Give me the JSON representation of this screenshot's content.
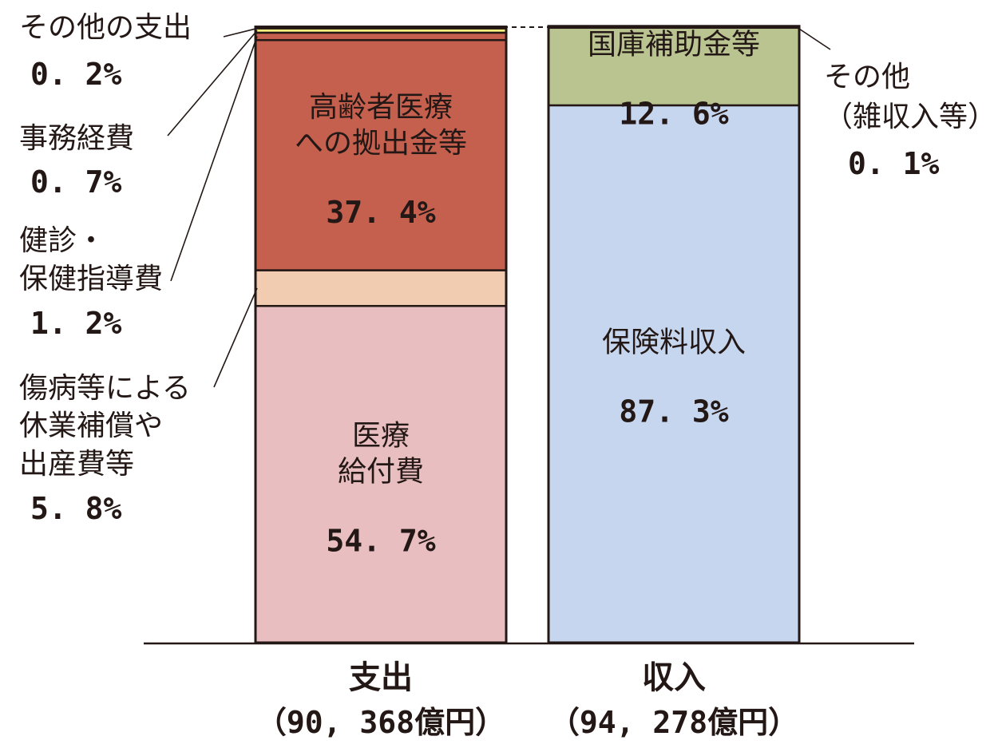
{
  "chart_data": {
    "type": "bar",
    "stacked": true,
    "normalized_percent": true,
    "categories": [
      {
        "name": "支出",
        "total": "（90, 368億円）"
      },
      {
        "name": "収入",
        "total": "（94, 278億円）"
      }
    ],
    "expenditure": [
      {
        "label_lines": [
          "医療",
          "給付費"
        ],
        "value": 54.7,
        "value_text": "54. 7%",
        "color": "#e9bec0",
        "label_position": "inside"
      },
      {
        "label_lines": [
          "傷病等による",
          "休業補償や",
          "出産費等"
        ],
        "value": 5.8,
        "value_text": "5. 8%",
        "color": "#f1ccb0",
        "label_position": "outside-left"
      },
      {
        "label_lines": [
          "高齢者医療",
          "への拠出金等"
        ],
        "value": 37.4,
        "value_text": "37. 4%",
        "color": "#c5604e",
        "label_position": "inside"
      },
      {
        "label_lines": [
          "健診・",
          "保健指導費"
        ],
        "value": 1.2,
        "value_text": "1. 2%",
        "color": "#c5604e",
        "label_position": "outside-left"
      },
      {
        "label_lines": [
          "事務経費"
        ],
        "value": 0.7,
        "value_text": "0. 7%",
        "color": "#f6ef7e",
        "label_position": "outside-left"
      },
      {
        "label_lines": [
          "その他の支出"
        ],
        "value": 0.2,
        "value_text": "0. 2%",
        "color": "#c6937a",
        "label_position": "outside-left"
      }
    ],
    "income": [
      {
        "label_lines": [
          "保険料収入"
        ],
        "value": 87.3,
        "value_text": "87. 3%",
        "color": "#c6d6ee",
        "label_position": "inside"
      },
      {
        "label_lines": [
          "国庫補助金等"
        ],
        "value": 12.6,
        "value_text": "12. 6%",
        "color": "#bac491",
        "label_position": "inside"
      },
      {
        "label_lines": [
          "その他",
          "（雑収入等）"
        ],
        "value": 0.1,
        "value_text": "0. 1%",
        "color": "#bac491",
        "label_position": "outside-right"
      }
    ],
    "legend": "none",
    "grid": false
  }
}
